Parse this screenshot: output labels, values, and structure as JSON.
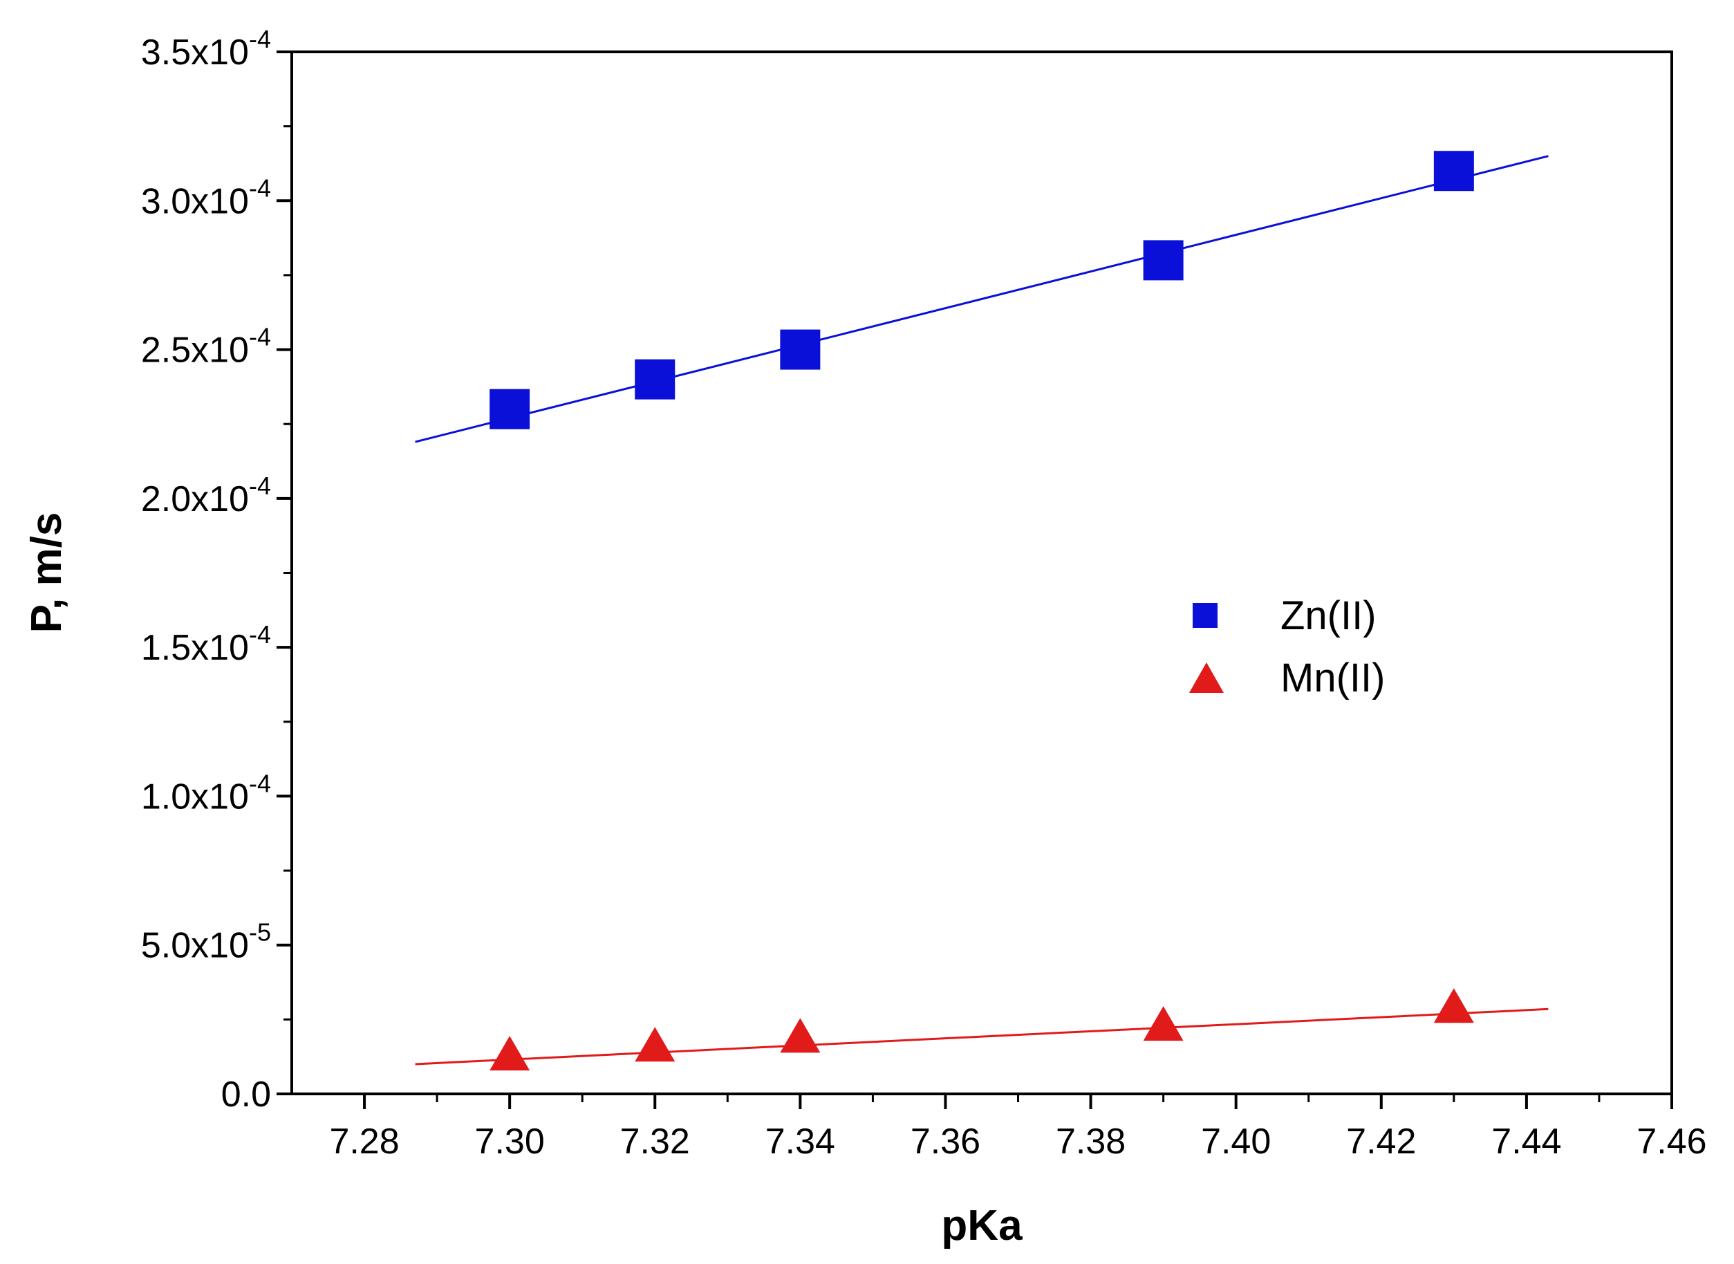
{
  "chart_data": {
    "type": "scatter",
    "title": "",
    "xlabel": "pKa",
    "ylabel": "P, m/s",
    "xlim": [
      7.27,
      7.46
    ],
    "ylim": [
      0,
      0.00035
    ],
    "x_ticks": [
      7.28,
      7.3,
      7.32,
      7.34,
      7.36,
      7.38,
      7.4,
      7.42,
      7.44,
      7.46
    ],
    "x_tick_labels": [
      "7.28",
      "7.30",
      "7.32",
      "7.34",
      "7.36",
      "7.38",
      "7.40",
      "7.42",
      "7.44",
      "7.46"
    ],
    "y_ticks": [
      0,
      5e-05,
      0.0001,
      0.00015,
      0.0002,
      0.00025,
      0.0003,
      0.00035
    ],
    "y_tick_labels": [
      {
        "mantissa": "0.0",
        "exponent": ""
      },
      {
        "mantissa": "5.0x10",
        "exponent": "-5"
      },
      {
        "mantissa": "1.0x10",
        "exponent": "-4"
      },
      {
        "mantissa": "1.5x10",
        "exponent": "-4"
      },
      {
        "mantissa": "2.0x10",
        "exponent": "-4"
      },
      {
        "mantissa": "2.5x10",
        "exponent": "-4"
      },
      {
        "mantissa": "3.0x10",
        "exponent": "-4"
      },
      {
        "mantissa": "3.5x10",
        "exponent": "-4"
      }
    ],
    "legend_position": "center-right",
    "series": [
      {
        "name": "Zn(II)",
        "marker": "square",
        "color": "#0a10d8",
        "x": [
          7.3,
          7.32,
          7.34,
          7.39,
          7.43
        ],
        "y": [
          0.00023,
          0.00024,
          0.00025,
          0.00028,
          0.00031
        ],
        "fit_line": {
          "x": [
            7.287,
            7.443
          ],
          "y": [
            0.000219,
            0.000315
          ]
        }
      },
      {
        "name": "Mn(II)",
        "marker": "triangle",
        "color": "#e11a1a",
        "x": [
          7.3,
          7.32,
          7.34,
          7.39,
          7.43
        ],
        "y": [
          1.25e-05,
          1.55e-05,
          1.85e-05,
          2.25e-05,
          2.85e-05
        ],
        "fit_line": {
          "x": [
            7.287,
            7.443
          ],
          "y": [
            1e-05,
            2.85e-05
          ]
        }
      }
    ]
  }
}
